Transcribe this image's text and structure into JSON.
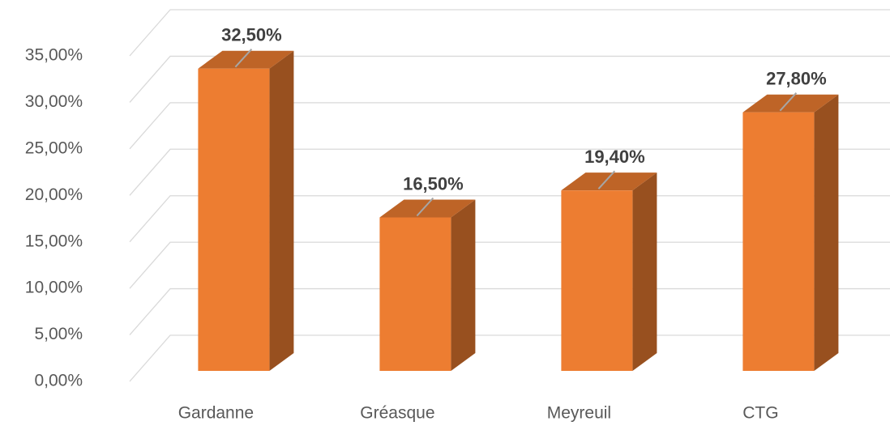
{
  "chart_data": {
    "type": "bar3d",
    "categories": [
      "Gardanne",
      "Gréasque",
      "Meyreuil",
      "CTG"
    ],
    "values": [
      32.5,
      16.5,
      19.4,
      27.8
    ],
    "value_labels": [
      "32,50%",
      "16,50%",
      "19,40%",
      "27,80%"
    ],
    "color": "#ed7d31",
    "ylim": [
      0,
      35
    ],
    "yticks": [
      {
        "value": 0,
        "label": "0,00%"
      },
      {
        "value": 5,
        "label": "5,00%"
      },
      {
        "value": 10,
        "label": "10,00%"
      },
      {
        "value": 15,
        "label": "15,00%"
      },
      {
        "value": 20,
        "label": "20,00%"
      },
      {
        "value": 25,
        "label": "25,00%"
      },
      {
        "value": 30,
        "label": "30,00%"
      },
      {
        "value": 35,
        "label": "35,00%"
      }
    ],
    "grid": true
  }
}
